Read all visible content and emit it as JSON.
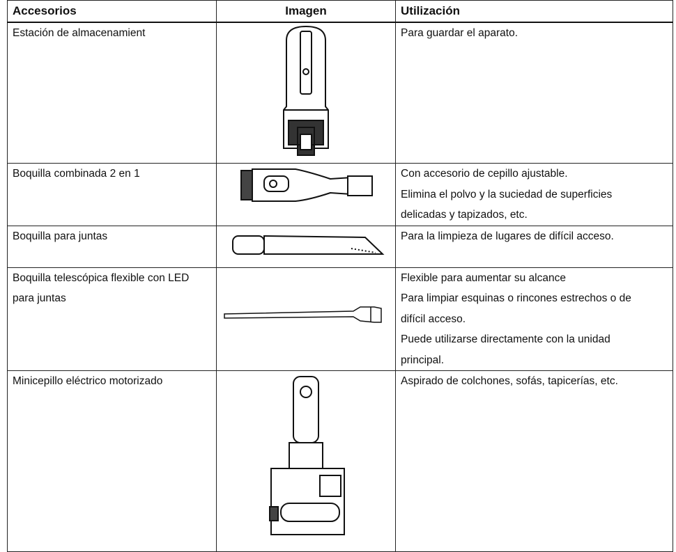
{
  "table": {
    "headers": [
      "Accesorios",
      "Imagen",
      "Utilización"
    ],
    "rows": [
      [
        "Estación de almacenamient",
        [
          "Para guardar el aparato."
        ]
      ],
      [
        "Boquilla combinada 2 en 1",
        [
          "Con accesorio de cepillo ajustable.",
          "Elimina el polvo y la suciedad de superficies",
          "delicadas y tapizados, etc."
        ]
      ],
      [
        "Boquilla para juntas",
        [
          "Para la limpieza de lugares de difícil acceso."
        ]
      ],
      [
        "Boquilla telescópica flexible con LED para juntas",
        [
          "Flexible para aumentar su alcance",
          "Para limpiar esquinas o rincones estrechos o de",
          "difícil acceso.",
          "Puede utilizarse directamente con la unidad",
          "principal."
        ]
      ],
      [
        "Minicepillo eléctrico motorizado",
        [
          "Aspirado de colchones, sofás, tapicerías, etc."
        ]
      ]
    ]
  }
}
